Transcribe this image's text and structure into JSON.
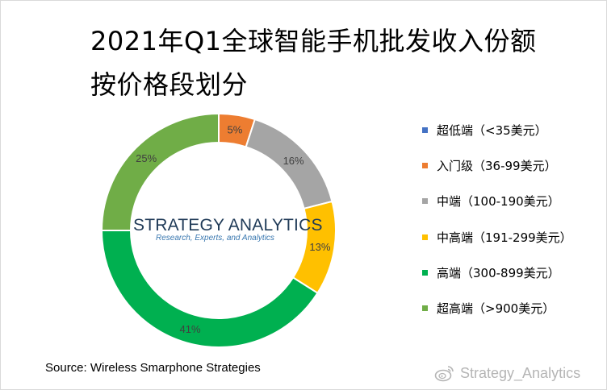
{
  "title_line1": "2021年Q1全球智能手机批发收入份额",
  "title_line2": "按价格段划分",
  "logo": {
    "main": "STRATEGY ANALYTICS",
    "sub": "Research, Experts, and Analytics"
  },
  "source": "Source: Wireless Smarphone Strategies",
  "watermark": "Strategy_Analytics",
  "watermark_icon": "weibo-icon",
  "chart_data": {
    "type": "pie",
    "donut": true,
    "start_angle_deg": 0,
    "direction": "clockwise",
    "legend_position": "right",
    "slices": [
      {
        "label": "超低端（<35美元）",
        "value": 0,
        "display": "",
        "color": "#4472C4"
      },
      {
        "label": "入门级（36-99美元）",
        "value": 5,
        "display": "5%",
        "color": "#ED7D31"
      },
      {
        "label": "中端（100-190美元）",
        "value": 16,
        "display": "16%",
        "color": "#A5A5A5"
      },
      {
        "label": "中高端（191-299美元）",
        "value": 13,
        "display": "13%",
        "color": "#FFC000"
      },
      {
        "label": "高端（300-899美元）",
        "value": 41,
        "display": "41%",
        "color": "#00B050"
      },
      {
        "label": "超高端（>900美元）",
        "value": 25,
        "display": "25%",
        "color": "#70AD47"
      }
    ]
  }
}
